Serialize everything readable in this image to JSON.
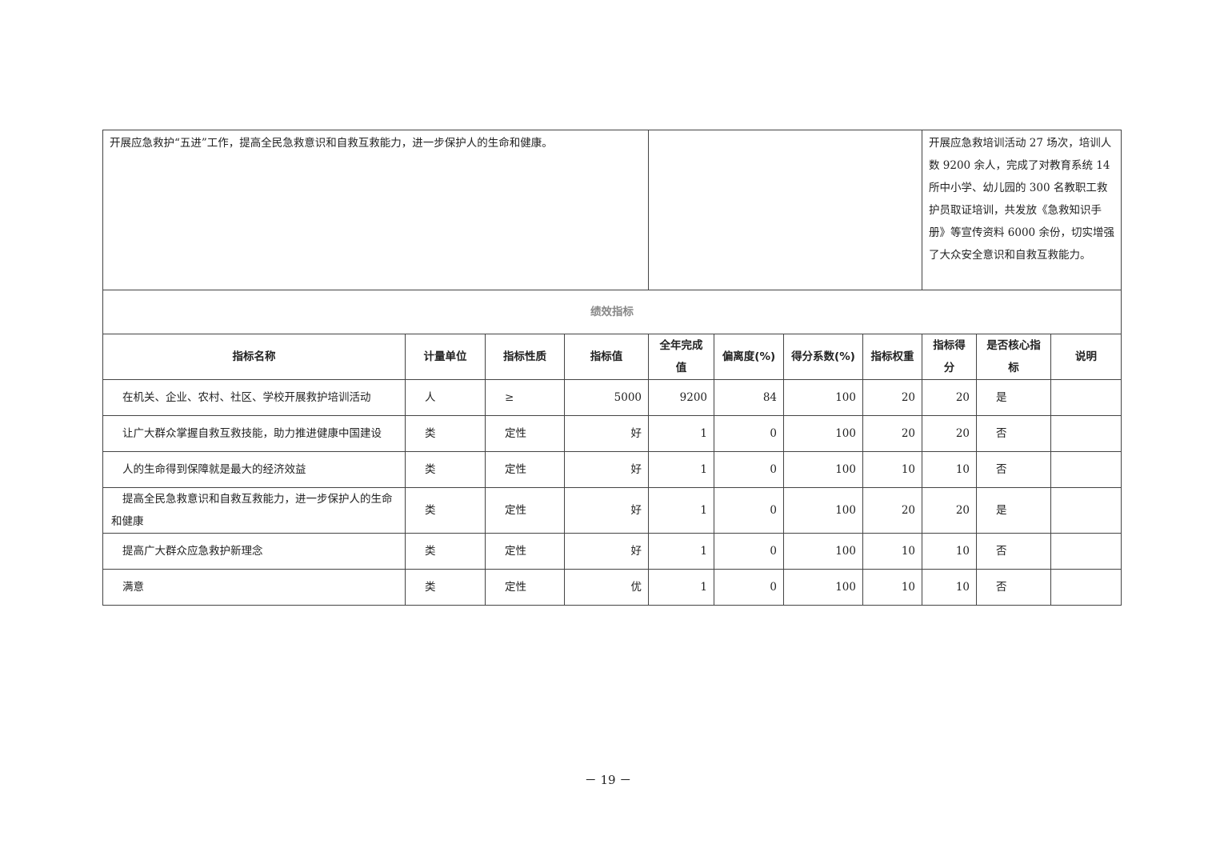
{
  "top_row": {
    "goal": "开展应急救护“五进”工作，提高全民急救意识和自救互救能力，进一步保护人的生命和健康。",
    "middle": "",
    "result": "开展应急救培训活动 27 场次，培训人数 9200 余人，完成了对教育系统 14 所中小学、幼儿园的 300 名教职工救护员取证培训，共发放《急救知识手册》等宣传资料 6000 余份，切实增强了大众安全意识和自救互救能力。"
  },
  "section_title": "绩效指标",
  "headers": [
    "指标名称",
    "计量单位",
    "指标性质",
    "指标值",
    "全年完成值",
    "偏离度(%)",
    "得分系数(%)",
    "指标权重",
    "指标得分",
    "是否核心指标",
    "说明"
  ],
  "rows": [
    [
      "在机关、企业、农村、社区、学校开展救护培训活动",
      "人",
      "≥",
      "5000",
      "9200",
      "84",
      "100",
      "20",
      "20",
      "是",
      ""
    ],
    [
      "让广大群众掌握自救互救技能，助力推进健康中国建设",
      "类",
      "定性",
      "好",
      "1",
      "0",
      "100",
      "20",
      "20",
      "否",
      ""
    ],
    [
      "人的生命得到保障就是最大的经济效益",
      "类",
      "定性",
      "好",
      "1",
      "0",
      "100",
      "10",
      "10",
      "否",
      ""
    ],
    [
      "提高全民急救意识和自救互救能力，进一步保护人的生命和健康",
      "类",
      "定性",
      "好",
      "1",
      "0",
      "100",
      "20",
      "20",
      "是",
      ""
    ],
    [
      "提高广大群众应急救护新理念",
      "类",
      "定性",
      "好",
      "1",
      "0",
      "100",
      "10",
      "10",
      "否",
      ""
    ],
    [
      "满意",
      "类",
      "定性",
      "优",
      "1",
      "0",
      "100",
      "10",
      "10",
      "否",
      ""
    ]
  ],
  "page_number": "－ 19 －"
}
